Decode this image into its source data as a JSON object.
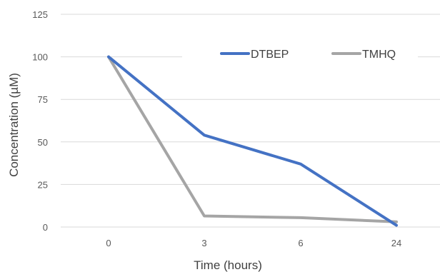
{
  "chart_data": {
    "type": "line",
    "categories": [
      "0",
      "3",
      "6",
      "24"
    ],
    "series": [
      {
        "name": "DTBEP",
        "values": [
          100,
          54,
          37,
          1
        ],
        "color": "#4472C4"
      },
      {
        "name": "TMHQ",
        "values": [
          100,
          6.5,
          5.5,
          3
        ],
        "color": "#A5A5A5"
      }
    ],
    "xlabel": "Time (hours)",
    "ylabel": "Concentration (µM)",
    "ylim": [
      0,
      125
    ],
    "yticks": [
      0,
      25,
      50,
      75,
      100,
      125
    ],
    "grid": true,
    "legend_position": "top-right",
    "grid_color": "#D9D9D9"
  }
}
